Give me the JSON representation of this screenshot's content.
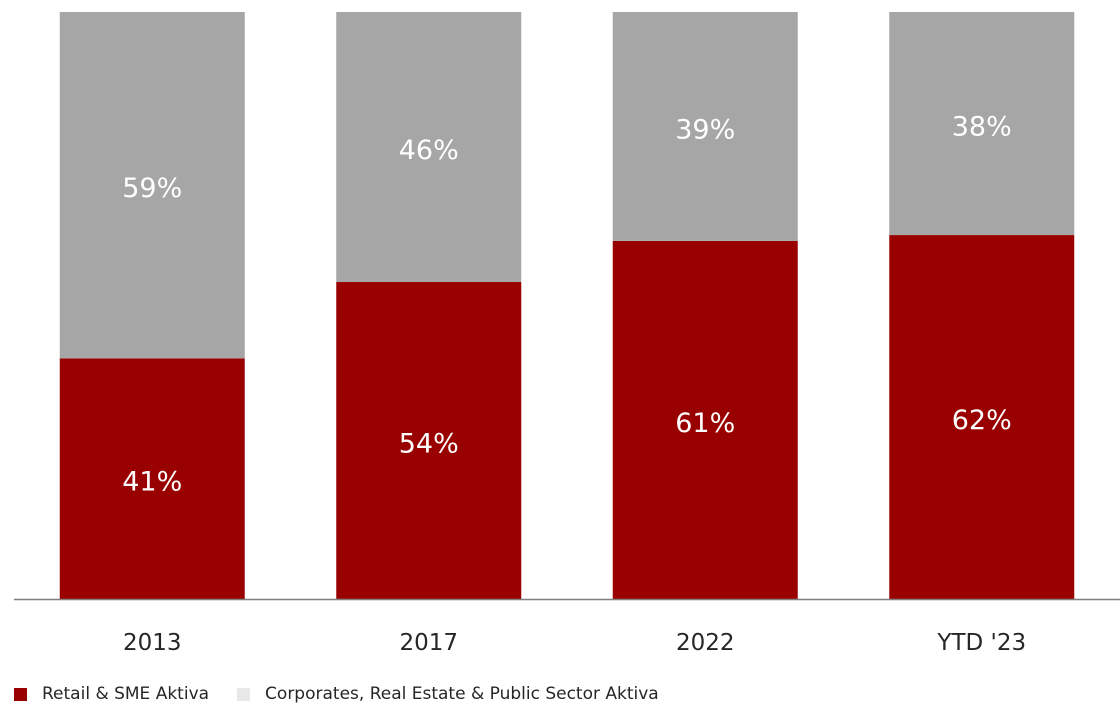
{
  "chart_data": {
    "type": "bar",
    "stacked": true,
    "categories": [
      "2013",
      "2017",
      "2022",
      "YTD '23"
    ],
    "series": [
      {
        "name": "Retail & SME Aktiva",
        "values": [
          41,
          54,
          61,
          62
        ],
        "labels": [
          "41%",
          "54%",
          "61%",
          "62%"
        ],
        "color": "#990000"
      },
      {
        "name": "Corporates, Real Estate & Public Sector Aktiva",
        "values": [
          59,
          46,
          39,
          38
        ],
        "labels": [
          "59%",
          "46%",
          "39%",
          "38%"
        ],
        "color": "#a6a6a6",
        "legend_color": "#e8e8e8"
      }
    ],
    "ylim": [
      0,
      100
    ],
    "grid": false,
    "legend_position": "bottom-left",
    "label_color": "#ffffff",
    "axis_color": "#7f7f7f",
    "text_color": "#262626"
  }
}
